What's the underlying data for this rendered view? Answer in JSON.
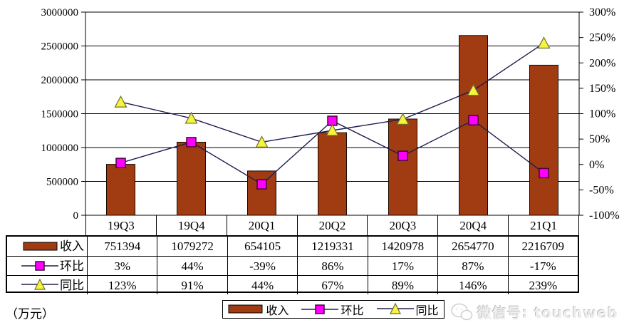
{
  "chart_data": {
    "type": "bar+line",
    "title": "",
    "categories": [
      "19Q3",
      "19Q4",
      "20Q1",
      "20Q2",
      "20Q3",
      "20Q4",
      "21Q1"
    ],
    "series": [
      {
        "name": "收入",
        "type": "bar",
        "axis": "left",
        "values": [
          751394,
          1079272,
          654105,
          1219331,
          1420978,
          2654770,
          2216709
        ],
        "marker": "bar"
      },
      {
        "name": "环比",
        "type": "line",
        "axis": "right",
        "values": [
          3,
          44,
          -39,
          86,
          17,
          87,
          -17
        ],
        "marker": "square"
      },
      {
        "name": "同比",
        "type": "line",
        "axis": "right",
        "values": [
          123,
          91,
          44,
          67,
          89,
          146,
          239
        ],
        "marker": "triangle"
      }
    ],
    "left_axis": {
      "min": 0,
      "max": 3000000,
      "step": 500000,
      "tick_labels": [
        "3000000",
        "2500000",
        "2000000",
        "1500000",
        "1000000",
        "500000",
        "0"
      ]
    },
    "right_axis": {
      "min": -100,
      "max": 300,
      "step": 50,
      "tick_labels": [
        "300%",
        "250%",
        "200%",
        "150%",
        "100%",
        "50%",
        "0%",
        "-50%",
        "-100%"
      ]
    },
    "grid": "horizontal",
    "legend_position": "bottom"
  },
  "table": {
    "rows": [
      {
        "label": "收入",
        "marker": "bar",
        "values": [
          "751394",
          "1079272",
          "654105",
          "1219331",
          "1420978",
          "2654770",
          "2216709"
        ]
      },
      {
        "label": "环比",
        "marker": "square",
        "values": [
          "3%",
          "44%",
          "-39%",
          "86%",
          "17%",
          "87%",
          "-17%"
        ]
      },
      {
        "label": "同比",
        "marker": "triangle",
        "values": [
          "123%",
          "91%",
          "44%",
          "67%",
          "89%",
          "146%",
          "239%"
        ]
      }
    ]
  },
  "legend": {
    "items": [
      {
        "label": "收入",
        "marker": "bar"
      },
      {
        "label": "环比",
        "marker": "square"
      },
      {
        "label": "同比",
        "marker": "triangle"
      }
    ]
  },
  "footer": {
    "unit": "（万元）",
    "watermark": "微信号: touchweb"
  },
  "colors": {
    "bar_fill": "#A03B12",
    "bar_stroke": "#1a0800",
    "line": "#1e1e52",
    "square_fill": "#FF00FF",
    "square_stroke": "#4a0040",
    "triangle_fill": "#F5F53F",
    "triangle_stroke": "#6e6e2a",
    "axis": "#000000",
    "watermark_gray": "#cfcfcf"
  }
}
